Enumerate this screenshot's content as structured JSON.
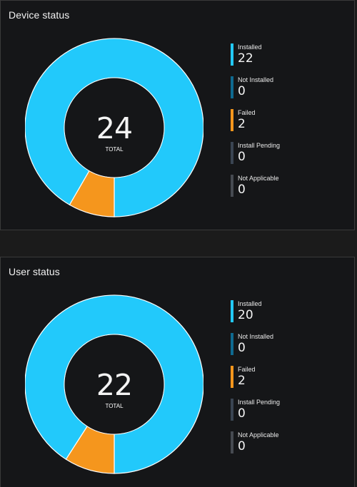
{
  "colors": {
    "installed": "#22c9fb",
    "not_installed": "#0e6a90",
    "failed": "#f5961d",
    "install_pending": "#3a4552",
    "not_applicable": "#464a51",
    "donut_hole": "#151618",
    "separator": "#ffffff"
  },
  "cards": [
    {
      "title": "Device status",
      "total": "24",
      "total_label": "TOTAL",
      "legend": [
        {
          "label": "Installed",
          "value": "22"
        },
        {
          "label": "Not Installed",
          "value": "0"
        },
        {
          "label": "Failed",
          "value": "2"
        },
        {
          "label": "Install Pending",
          "value": "0"
        },
        {
          "label": "Not Applicable",
          "value": "0"
        }
      ]
    },
    {
      "title": "User status",
      "total": "22",
      "total_label": "TOTAL",
      "legend": [
        {
          "label": "Installed",
          "value": "20"
        },
        {
          "label": "Not Installed",
          "value": "0"
        },
        {
          "label": "Failed",
          "value": "2"
        },
        {
          "label": "Install Pending",
          "value": "0"
        },
        {
          "label": "Not Applicable",
          "value": "0"
        }
      ]
    }
  ]
}
